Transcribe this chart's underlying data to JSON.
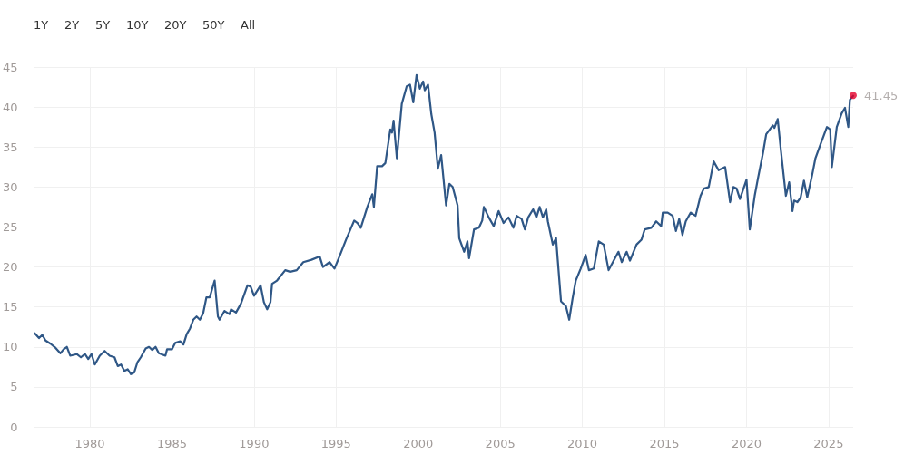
{
  "chart_data": {
    "type": "line",
    "annotations": [
      "1Y",
      "2Y",
      "5Y",
      "10Y",
      "20Y",
      "50Y",
      "All"
    ],
    "xlim": [
      1976.6,
      2026.5
    ],
    "xticks": [
      1980,
      1985,
      1990,
      1995,
      2000,
      2005,
      2010,
      2015,
      2020,
      2025
    ],
    "ylim": [
      0,
      45
    ],
    "yticks": [
      0,
      5,
      10,
      15,
      20,
      25,
      30,
      35,
      40,
      45
    ],
    "grid": true,
    "line_style": "solid",
    "series": [
      {
        "marker": "none",
        "color": "#2f5786",
        "x": [
          1976.64,
          1976.9,
          1977.1,
          1977.3,
          1977.6,
          1977.9,
          1978.2,
          1978.4,
          1978.6,
          1978.8,
          1979.2,
          1979.45,
          1979.7,
          1979.9,
          1980.1,
          1980.3,
          1980.6,
          1980.9,
          1981.2,
          1981.5,
          1981.7,
          1981.9,
          1982.1,
          1982.3,
          1982.5,
          1982.7,
          1982.9,
          1983.1,
          1983.4,
          1983.6,
          1983.8,
          1984.0,
          1984.2,
          1984.6,
          1984.7,
          1985.0,
          1985.2,
          1985.5,
          1985.7,
          1985.9,
          1986.1,
          1986.3,
          1986.5,
          1986.7,
          1986.9,
          1987.1,
          1987.3,
          1987.6,
          1987.8,
          1987.9,
          1988.2,
          1988.5,
          1988.6,
          1988.9,
          1989.2,
          1989.6,
          1989.8,
          1990.0,
          1990.4,
          1990.6,
          1990.8,
          1991.0,
          1991.1,
          1991.4,
          1991.9,
          1992.2,
          1992.6,
          1993.0,
          1993.5,
          1994.0,
          1994.2,
          1994.6,
          1994.9,
          1995.2,
          1995.6,
          1996.1,
          1996.3,
          1996.5,
          1996.9,
          1997.2,
          1997.3,
          1997.5,
          1997.8,
          1998.0,
          1998.3,
          1998.4,
          1998.5,
          1998.7,
          1999.0,
          1999.3,
          1999.5,
          1999.7,
          1999.9,
          2000.1,
          2000.3,
          2000.4,
          2000.6,
          2000.8,
          2001.0,
          2001.2,
          2001.4,
          2001.7,
          2001.9,
          2002.1,
          2002.4,
          2002.5,
          2002.8,
          2003.0,
          2003.1,
          2003.4,
          2003.7,
          2003.9,
          2004.0,
          2004.3,
          2004.6,
          2004.9,
          2005.2,
          2005.5,
          2005.8,
          2006.0,
          2006.3,
          2006.5,
          2006.7,
          2007.0,
          2007.2,
          2007.4,
          2007.6,
          2007.8,
          2007.9,
          2008.2,
          2008.4,
          2008.5,
          2008.7,
          2009.0,
          2009.2,
          2009.4,
          2009.6,
          2009.9,
          2010.2,
          2010.4,
          2010.7,
          2011.0,
          2011.3,
          2011.6,
          2012.2,
          2012.4,
          2012.7,
          2012.9,
          2013.3,
          2013.6,
          2013.8,
          2014.2,
          2014.5,
          2014.8,
          2014.9,
          2015.2,
          2015.5,
          2015.7,
          2015.9,
          2016.1,
          2016.3,
          2016.6,
          2016.9,
          2017.2,
          2017.4,
          2017.7,
          2018.0,
          2018.3,
          2018.7,
          2019.0,
          2019.2,
          2019.4,
          2019.6,
          2020.0,
          2020.2,
          2020.5,
          2020.7,
          2021.0,
          2021.2,
          2021.6,
          2021.7,
          2021.9,
          2022.1,
          2022.4,
          2022.6,
          2022.8,
          2022.9,
          2023.1,
          2023.3,
          2023.5,
          2023.7,
          2024.0,
          2024.2,
          2024.5,
          2024.9,
          2025.1,
          2025.2,
          2025.5,
          2025.8,
          2026.0,
          2026.2,
          2026.3,
          2026.5
        ],
        "values": [
          11.7,
          11.1,
          11.5,
          10.8,
          10.4,
          9.9,
          9.2,
          9.7,
          10.0,
          8.9,
          9.1,
          8.7,
          9.1,
          8.5,
          9.1,
          7.8,
          8.9,
          9.5,
          8.9,
          8.7,
          7.6,
          7.8,
          7.0,
          7.2,
          6.6,
          6.8,
          8.1,
          8.7,
          9.8,
          10.0,
          9.6,
          10.0,
          9.2,
          8.9,
          9.7,
          9.7,
          10.5,
          10.7,
          10.3,
          11.6,
          12.3,
          13.4,
          13.8,
          13.4,
          14.2,
          16.2,
          16.2,
          18.3,
          13.8,
          13.4,
          14.5,
          14.1,
          14.7,
          14.3,
          15.4,
          17.7,
          17.5,
          16.4,
          17.7,
          15.6,
          14.7,
          15.6,
          17.9,
          18.3,
          19.6,
          19.4,
          19.6,
          20.6,
          20.9,
          21.3,
          20.0,
          20.6,
          19.8,
          21.3,
          23.4,
          25.8,
          25.5,
          24.9,
          27.5,
          29.1,
          27.5,
          32.6,
          32.6,
          33.0,
          37.2,
          36.8,
          38.3,
          33.6,
          40.4,
          42.6,
          42.8,
          40.6,
          44.0,
          42.3,
          43.2,
          42.1,
          42.8,
          39.1,
          36.8,
          32.3,
          34.0,
          27.7,
          30.4,
          30.0,
          27.7,
          23.6,
          21.9,
          23.2,
          21.1,
          24.7,
          24.9,
          25.8,
          27.5,
          26.2,
          25.1,
          27.0,
          25.5,
          26.2,
          24.9,
          26.4,
          26.0,
          24.7,
          26.2,
          27.2,
          26.2,
          27.5,
          26.2,
          27.2,
          25.7,
          22.8,
          23.6,
          20.9,
          15.7,
          15.1,
          13.4,
          16.0,
          18.3,
          19.8,
          21.5,
          19.6,
          19.8,
          23.2,
          22.8,
          19.6,
          21.9,
          20.6,
          21.9,
          20.8,
          22.8,
          23.4,
          24.7,
          24.9,
          25.7,
          25.1,
          26.8,
          26.8,
          26.4,
          24.5,
          26.0,
          24.0,
          25.7,
          26.8,
          26.4,
          28.9,
          29.8,
          30.0,
          33.2,
          32.1,
          32.5,
          28.1,
          30.0,
          29.8,
          28.5,
          30.9,
          24.7,
          28.9,
          31.1,
          34.2,
          36.6,
          37.7,
          37.4,
          38.5,
          34.5,
          28.9,
          30.6,
          27.0,
          28.3,
          28.1,
          28.7,
          30.8,
          28.7,
          31.5,
          33.6,
          35.3,
          37.5,
          37.2,
          32.5,
          37.5,
          39.2,
          39.9,
          37.5,
          40.9,
          41.4
        ]
      },
      {
        "type": "scatter",
        "marker": "circle",
        "color": "#e4002b",
        "x": [
          2026.5
        ],
        "values": [
          41.45
        ],
        "value_labels": [
          "41.45"
        ]
      }
    ]
  }
}
